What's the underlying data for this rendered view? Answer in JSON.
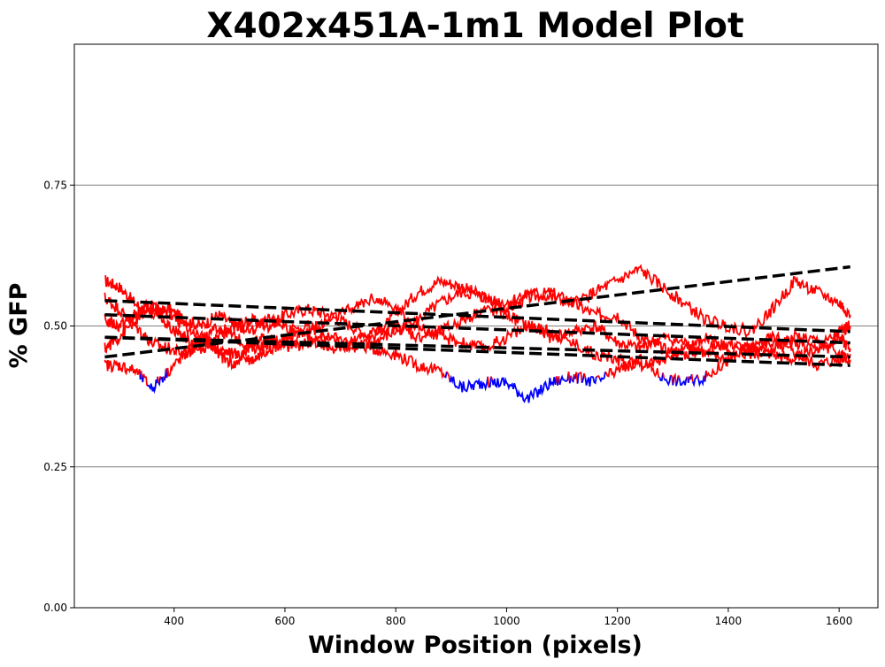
{
  "chart_data": {
    "type": "line",
    "title": "X402x451A-1m1 Model Plot",
    "xlabel": "Window Position (pixels)",
    "ylabel": "% GFP",
    "xlim": [
      220,
      1670
    ],
    "ylim": [
      0,
      1.0
    ],
    "xticks": [
      400,
      600,
      800,
      1000,
      1200,
      1400,
      1600
    ],
    "yticks": [
      0.0,
      0.25,
      0.5,
      0.75
    ],
    "xtick_labels": [
      "400",
      "600",
      "800",
      "1000",
      "1200",
      "1400",
      "1600"
    ],
    "ytick_labels": [
      "0.00",
      "0.25",
      "0.50",
      "0.75"
    ],
    "grid": "y-major",
    "colors": {
      "trace": "#ff0000",
      "below_threshold": "#0000ff",
      "fit": "#000000",
      "grid": "#808080"
    },
    "threshold": 0.41,
    "series": [
      {
        "x": [
          275,
          300,
          330,
          360,
          390,
          420,
          450,
          480,
          510,
          540,
          570,
          600,
          640,
          680,
          720,
          760,
          800,
          840,
          880,
          920,
          960,
          1000,
          1040,
          1080,
          1120,
          1160,
          1200,
          1240,
          1280,
          1320,
          1360,
          1400,
          1440,
          1480,
          1520,
          1560,
          1600,
          1620
        ],
        "y": [
          0.58,
          0.57,
          0.54,
          0.52,
          0.53,
          0.51,
          0.5,
          0.52,
          0.5,
          0.51,
          0.5,
          0.52,
          0.53,
          0.52,
          0.5,
          0.48,
          0.52,
          0.56,
          0.58,
          0.57,
          0.55,
          0.53,
          0.55,
          0.56,
          0.54,
          0.52,
          0.52,
          0.48,
          0.46,
          0.45,
          0.46,
          0.47,
          0.46,
          0.45,
          0.44,
          0.46,
          0.48,
          0.46
        ]
      },
      {
        "x": [
          275,
          300,
          330,
          360,
          390,
          420,
          450,
          480,
          510,
          540,
          570,
          600,
          640,
          680,
          720,
          760,
          800,
          840,
          880,
          920,
          960,
          1000,
          1040,
          1080,
          1120,
          1160,
          1200,
          1240,
          1280,
          1320,
          1360,
          1400,
          1440,
          1480,
          1520,
          1560,
          1600,
          1620
        ],
        "y": [
          0.55,
          0.53,
          0.5,
          0.47,
          0.46,
          0.45,
          0.47,
          0.5,
          0.48,
          0.46,
          0.47,
          0.48,
          0.5,
          0.48,
          0.47,
          0.46,
          0.45,
          0.43,
          0.42,
          0.39,
          0.4,
          0.4,
          0.37,
          0.4,
          0.41,
          0.4,
          0.42,
          0.44,
          0.41,
          0.4,
          0.41,
          0.44,
          0.46,
          0.48,
          0.47,
          0.46,
          0.49,
          0.5
        ]
      },
      {
        "x": [
          275,
          300,
          330,
          360,
          390,
          420,
          450,
          480,
          510,
          540,
          570,
          600,
          640,
          680,
          720,
          760,
          800,
          840,
          880,
          920,
          960,
          1000,
          1040,
          1080,
          1120,
          1160,
          1200,
          1240,
          1280,
          1320,
          1360,
          1400,
          1440,
          1480,
          1520,
          1560,
          1600,
          1620
        ],
        "y": [
          0.43,
          0.43,
          0.42,
          0.39,
          0.42,
          0.45,
          0.48,
          0.45,
          0.43,
          0.47,
          0.48,
          0.46,
          0.47,
          0.48,
          0.46,
          0.47,
          0.49,
          0.51,
          0.54,
          0.56,
          0.55,
          0.54,
          0.56,
          0.55,
          0.54,
          0.56,
          0.58,
          0.6,
          0.57,
          0.54,
          0.51,
          0.5,
          0.49,
          0.53,
          0.58,
          0.56,
          0.54,
          0.52
        ]
      },
      {
        "x": [
          275,
          300,
          330,
          360,
          390,
          420,
          450,
          480,
          510,
          540,
          570,
          600,
          640,
          680,
          720,
          760,
          800,
          840,
          880,
          920,
          960,
          1000,
          1040,
          1080,
          1120,
          1160,
          1200,
          1240,
          1280,
          1320,
          1360,
          1400,
          1440,
          1480,
          1520,
          1560,
          1600,
          1620
        ],
        "y": [
          0.46,
          0.48,
          0.51,
          0.53,
          0.52,
          0.5,
          0.48,
          0.46,
          0.45,
          0.44,
          0.46,
          0.47,
          0.49,
          0.51,
          0.53,
          0.55,
          0.53,
          0.5,
          0.48,
          0.47,
          0.46,
          0.48,
          0.5,
          0.49,
          0.47,
          0.45,
          0.44,
          0.43,
          0.44,
          0.46,
          0.48,
          0.46,
          0.45,
          0.46,
          0.48,
          0.47,
          0.45,
          0.44
        ]
      },
      {
        "x": [
          275,
          300,
          330,
          360,
          390,
          420,
          450,
          480,
          510,
          540,
          570,
          600,
          640,
          680,
          720,
          760,
          800,
          840,
          880,
          920,
          960,
          1000,
          1040,
          1080,
          1120,
          1160,
          1200,
          1240,
          1280,
          1320,
          1360,
          1400,
          1440,
          1480,
          1520,
          1560,
          1600,
          1620
        ],
        "y": [
          0.51,
          0.5,
          0.52,
          0.54,
          0.5,
          0.48,
          0.46,
          0.48,
          0.5,
          0.49,
          0.51,
          0.5,
          0.48,
          0.46,
          0.47,
          0.49,
          0.5,
          0.48,
          0.49,
          0.51,
          0.53,
          0.52,
          0.5,
          0.48,
          0.49,
          0.5,
          0.47,
          0.46,
          0.48,
          0.47,
          0.45,
          0.44,
          0.46,
          0.47,
          0.45,
          0.43,
          0.44,
          0.45
        ]
      }
    ],
    "fits": [
      {
        "x": [
          275,
          1620
        ],
        "y": [
          0.545,
          0.49
        ]
      },
      {
        "x": [
          275,
          1620
        ],
        "y": [
          0.52,
          0.47
        ]
      },
      {
        "x": [
          275,
          1620
        ],
        "y": [
          0.48,
          0.445
        ]
      },
      {
        "x": [
          275,
          1620
        ],
        "y": [
          0.48,
          0.43
        ]
      },
      {
        "x": [
          275,
          1620
        ],
        "y": [
          0.445,
          0.605
        ]
      }
    ]
  }
}
